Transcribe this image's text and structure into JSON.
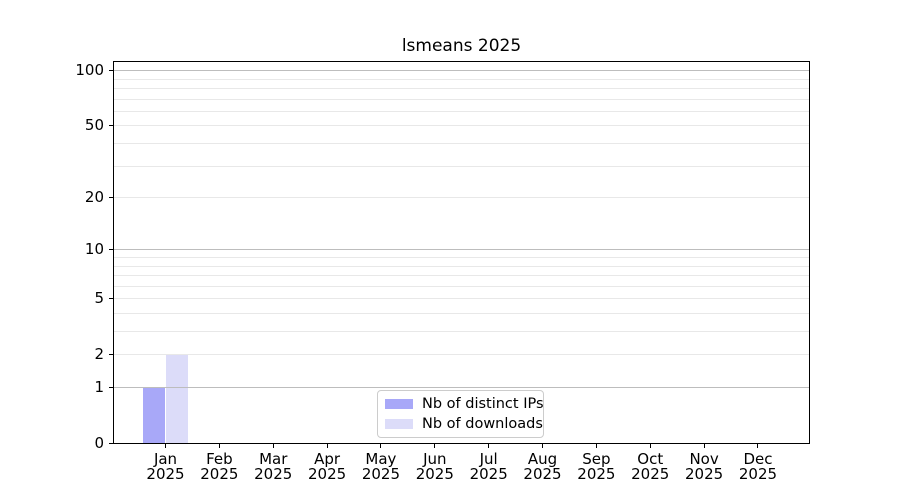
{
  "chart_data": {
    "type": "bar",
    "title": "lsmeans 2025",
    "x_categories": [
      "Jan",
      "Feb",
      "Mar",
      "Apr",
      "May",
      "Jun",
      "Jul",
      "Aug",
      "Sep",
      "Oct",
      "Nov",
      "Dec"
    ],
    "x_year_suffix": "2025",
    "series": [
      {
        "name": "Nb of distinct IPs",
        "color": "#a8a8f8",
        "values": [
          1,
          0,
          0,
          0,
          0,
          0,
          0,
          0,
          0,
          0,
          0,
          0
        ]
      },
      {
        "name": "Nb of downloads",
        "color": "#dcdcf9",
        "values": [
          2,
          0,
          0,
          0,
          0,
          0,
          0,
          0,
          0,
          0,
          0,
          0
        ]
      }
    ],
    "y_scale": "log1p",
    "y_tick_values": [
      0,
      1,
      2,
      5,
      10,
      20,
      50,
      100
    ],
    "y_major_gridlines": [
      1,
      10,
      100
    ],
    "y_minor_gridlines": [
      2,
      3,
      4,
      6,
      7,
      8,
      9,
      20,
      30,
      40,
      50,
      60,
      70,
      80,
      90,
      5
    ],
    "ylim": [
      0,
      112
    ],
    "grid": true,
    "legend_position": "lower center",
    "colors": {
      "background": "#ffffff",
      "axis": "#000000",
      "text": "#000000",
      "major_grid": "#bdbdbd",
      "minor_grid": "#e8e8e8"
    }
  }
}
